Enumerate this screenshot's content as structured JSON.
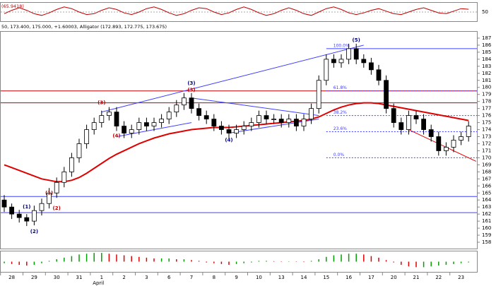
{
  "chart_data": {
    "type": "candlestick",
    "header": "50, 173.400, 175.000, +1.60003, Alligator (172.893, 172.775, 173.675)",
    "month_label": "April",
    "categories": [
      "28",
      null,
      null,
      "29",
      null,
      null,
      "30",
      null,
      null,
      "31",
      null,
      null,
      "1",
      null,
      null,
      "2",
      null,
      null,
      "3",
      null,
      null,
      "6",
      null,
      null,
      "7",
      null,
      null,
      "8",
      null,
      null,
      "9",
      null,
      null,
      "10",
      null,
      null,
      "13",
      null,
      null,
      "14",
      null,
      null,
      "15",
      null,
      null,
      "16",
      null,
      null,
      "17",
      null,
      null,
      "20",
      null,
      null,
      "21",
      null,
      null,
      "22",
      null,
      null,
      "23",
      null,
      null
    ],
    "ohlc": [
      [
        164,
        164.7,
        162.3,
        163
      ],
      [
        163,
        163.5,
        161.3,
        162
      ],
      [
        162,
        162.6,
        160.8,
        161.5
      ],
      [
        161.5,
        162,
        160.3,
        161
      ],
      [
        161,
        163.2,
        160.4,
        162.5
      ],
      [
        162.5,
        164.2,
        161.8,
        163.5
      ],
      [
        163.5,
        165.7,
        162.8,
        165
      ],
      [
        165,
        167.2,
        164.3,
        166.5
      ],
      [
        166.5,
        168.7,
        165.8,
        168
      ],
      [
        168,
        170.7,
        167.3,
        170
      ],
      [
        170,
        172.7,
        169.3,
        172
      ],
      [
        172,
        174.7,
        171.3,
        174
      ],
      [
        174,
        175.7,
        173.3,
        175
      ],
      [
        175,
        176.7,
        174.3,
        176
      ],
      [
        176,
        177.2,
        175.3,
        176.5
      ],
      [
        176.5,
        177.2,
        173.8,
        174.5
      ],
      [
        174.5,
        175.2,
        172.8,
        173.5
      ],
      [
        173.5,
        174.7,
        172.8,
        174
      ],
      [
        174,
        175.7,
        173.3,
        175
      ],
      [
        175,
        175.7,
        173.8,
        174.5
      ],
      [
        174.5,
        175.7,
        173.8,
        175
      ],
      [
        175,
        176.2,
        174.3,
        175.5
      ],
      [
        175.5,
        177.2,
        174.8,
        176.5
      ],
      [
        176.5,
        178.2,
        175.8,
        177.5
      ],
      [
        177.5,
        179.2,
        176.8,
        178.5
      ],
      [
        178.5,
        179.2,
        176.3,
        177
      ],
      [
        177,
        177.7,
        175.3,
        176
      ],
      [
        176,
        176.7,
        174.8,
        175.5
      ],
      [
        175.5,
        176.2,
        173.8,
        174.5
      ],
      [
        174.5,
        175.2,
        173.3,
        174
      ],
      [
        174,
        174.7,
        172.8,
        173.5
      ],
      [
        173.5,
        174.7,
        172.8,
        174
      ],
      [
        174,
        175.2,
        173.3,
        174.5
      ],
      [
        174.5,
        175.7,
        173.8,
        175
      ],
      [
        175,
        176.7,
        174.3,
        176
      ],
      [
        176,
        176.7,
        174.8,
        175.5
      ],
      [
        175.5,
        176.2,
        174.8,
        175.5
      ],
      [
        175.5,
        176.2,
        174.3,
        175
      ],
      [
        175,
        176.2,
        174.3,
        175.5
      ],
      [
        175.5,
        176.2,
        173.8,
        174.5
      ],
      [
        174.5,
        176.2,
        173.8,
        175.5
      ],
      [
        175.5,
        177.7,
        174.8,
        177
      ],
      [
        177,
        181.7,
        176.3,
        181
      ],
      [
        181,
        184.7,
        180.3,
        184
      ],
      [
        184,
        184.7,
        182.8,
        183.5
      ],
      [
        183.5,
        184.7,
        182.8,
        184
      ],
      [
        184,
        186.2,
        183.3,
        185.5
      ],
      [
        185.5,
        186.2,
        183.3,
        184
      ],
      [
        184,
        184.7,
        182.8,
        183.5
      ],
      [
        183.5,
        184.2,
        181.8,
        182.5
      ],
      [
        182.5,
        183.2,
        180.3,
        181
      ],
      [
        181,
        181.7,
        176.3,
        177
      ],
      [
        177,
        177.7,
        174.3,
        175
      ],
      [
        175,
        175.7,
        173.3,
        174
      ],
      [
        174,
        176.7,
        173.3,
        176
      ],
      [
        176,
        176.7,
        174.8,
        175.5
      ],
      [
        175.5,
        176.2,
        173.3,
        174
      ],
      [
        174,
        174.7,
        172.3,
        173
      ],
      [
        173,
        173.7,
        170.3,
        171
      ],
      [
        171,
        172.2,
        170.3,
        171.5
      ],
      [
        171.5,
        173.2,
        170.8,
        172.5
      ],
      [
        172.5,
        173.7,
        171.8,
        173
      ],
      [
        173,
        175.2,
        172.3,
        174.5
      ]
    ],
    "up_color": "#ffffff",
    "down_color": "#000000",
    "series": [
      {
        "color": "#e00000",
        "values": [
          169,
          168.6,
          168.2,
          167.8,
          167.4,
          167,
          166.8,
          166.6,
          166.6,
          166.8,
          167.2,
          167.8,
          168.5,
          169.2,
          169.9,
          170.5,
          171,
          171.5,
          172,
          172.4,
          172.8,
          173.1,
          173.4,
          173.6,
          173.8,
          174,
          174.1,
          174.2,
          174.3,
          174.3,
          174.3,
          174.4,
          174.5,
          174.6,
          174.7,
          174.8,
          174.9,
          175,
          175.1,
          175.2,
          175.3,
          175.5,
          175.8,
          176.3,
          176.8,
          177.2,
          177.5,
          177.7,
          177.8,
          177.8,
          177.7,
          177.5,
          177.3,
          177.1,
          176.9,
          176.7,
          176.5,
          176.3,
          176.1,
          175.9,
          175.7,
          175.5,
          175.3
        ]
      }
    ],
    "ylim": [
      157.3,
      187.8
    ],
    "yticks": [
      158,
      159,
      160,
      161,
      162,
      163,
      164,
      165,
      166,
      167,
      168,
      169,
      170,
      171,
      172,
      173,
      174,
      175,
      176,
      177,
      178,
      179,
      180,
      181,
      182,
      183,
      184,
      185,
      186,
      187
    ],
    "grid": false,
    "hlines": [
      {
        "value": 179.5,
        "color": "#c00000"
      },
      {
        "value": 177.8,
        "color": "#c00000"
      },
      {
        "value": 164.5,
        "color": "#4040ff"
      },
      {
        "value": 162.2,
        "color": "#4040ff"
      }
    ],
    "fib_start": 43,
    "fib_color": "#4040ff",
    "fib_levels": [
      {
        "value": 185.5,
        "label": "100.0%"
      },
      {
        "value": 179.5,
        "label": "61.8%"
      },
      {
        "value": 176,
        "label": "38.2%"
      },
      {
        "value": 173.7,
        "label": "23.6%"
      },
      {
        "value": 170,
        "label": "0.0%"
      }
    ],
    "trendlines": [
      {
        "color": "#4040ff",
        "points": [
          [
            13,
            176.5
          ],
          [
            48,
            186
          ]
        ]
      },
      {
        "color": "#4040ff",
        "points": [
          [
            25,
            178.5
          ],
          [
            42,
            176
          ]
        ]
      },
      {
        "color": "#4040ff",
        "points": [
          [
            15,
            173
          ],
          [
            25,
            175
          ]
        ]
      },
      {
        "color": "#4040ff",
        "points": [
          [
            30,
            173.5
          ],
          [
            42,
            175.5
          ]
        ]
      },
      {
        "color": "#e00000",
        "points": [
          [
            54,
            174
          ],
          [
            63,
            169.5
          ]
        ]
      }
    ],
    "annotations": [
      {
        "text": "(1)",
        "x": 3,
        "y": 163,
        "color": "#000080"
      },
      {
        "text": "(2)",
        "x": 4,
        "y": 159.5,
        "color": "#000080"
      },
      {
        "text": "(1)",
        "x": 6,
        "y": 165,
        "color": "#c00000"
      },
      {
        "text": "(2)",
        "x": 7,
        "y": 162.8,
        "color": "#c00000"
      },
      {
        "text": "(3)",
        "x": 13,
        "y": 177.8,
        "color": "#c00000"
      },
      {
        "text": "(4)",
        "x": 15,
        "y": 173.1,
        "color": "#c00000"
      },
      {
        "text": "(3)",
        "x": 25,
        "y": 180.6,
        "color": "#000080"
      },
      {
        "text": "(3)",
        "x": 25,
        "y": 179.6,
        "color": "#c00000"
      },
      {
        "text": "(4)",
        "x": 30,
        "y": 172.5,
        "color": "#000080"
      },
      {
        "text": "(5)",
        "x": 47,
        "y": 186.7,
        "color": "#000080"
      }
    ],
    "oscillator": {
      "label": "(65.9418)",
      "color": "#c00000",
      "ylim": [
        0,
        100
      ],
      "yticks": [
        50
      ],
      "values": [
        40,
        60,
        75,
        60,
        40,
        30,
        45,
        65,
        80,
        70,
        50,
        35,
        40,
        60,
        75,
        65,
        45,
        35,
        50,
        70,
        80,
        65,
        45,
        30,
        40,
        60,
        75,
        70,
        50,
        35,
        45,
        65,
        80,
        65,
        45,
        30,
        40,
        60,
        75,
        60,
        40,
        30,
        50,
        70,
        80,
        65,
        45,
        35,
        45,
        60,
        70,
        55,
        40,
        35,
        50,
        65,
        75,
        60,
        45,
        40,
        55,
        70,
        66
      ]
    },
    "histogram": {
      "rise_color": "#00a000",
      "fall_color": "#e00000",
      "ylim": [
        -6,
        6
      ],
      "values": [
        -1,
        -1.5,
        -2,
        -2.5,
        -2,
        -1,
        0.5,
        1.5,
        2.5,
        3.5,
        4.5,
        5,
        5.5,
        5.5,
        5,
        4.5,
        4,
        3.5,
        3,
        2.5,
        2,
        2,
        2,
        1.5,
        1.5,
        1,
        0.5,
        -0.5,
        -1,
        -1.5,
        -2,
        -1.5,
        -1,
        -0.5,
        0.5,
        0.5,
        0.3,
        0.2,
        0.2,
        -0.2,
        -0.3,
        0.5,
        1.5,
        3,
        4,
        4.5,
        5,
        5,
        4.5,
        3.5,
        2.5,
        1,
        -0.5,
        -2,
        -3,
        -3.5,
        -3.5,
        -3,
        -2.5,
        -2,
        -1.5,
        -1,
        -0.5
      ]
    }
  }
}
